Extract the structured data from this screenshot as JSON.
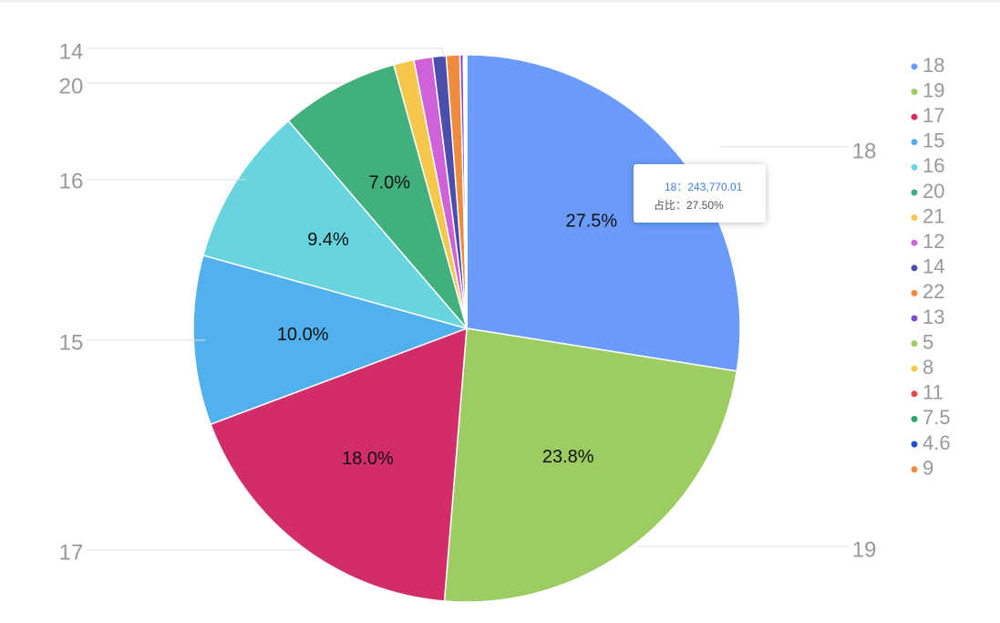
{
  "chart_data": {
    "type": "pie",
    "categories": [
      "18",
      "19",
      "17",
      "15",
      "16",
      "20",
      "21",
      "12",
      "14",
      "22",
      "13",
      "5",
      "8",
      "11",
      "7.5",
      "4.6",
      "9"
    ],
    "values": [
      27.5,
      23.8,
      18.0,
      10.0,
      9.4,
      7.0,
      1.2,
      1.1,
      0.8,
      0.8,
      0.2,
      0.04,
      0.04,
      0.03,
      0.03,
      0.03,
      0.03
    ],
    "value_labels": [
      "27.5%",
      "23.8%",
      "18.0%",
      "10.0%",
      "9.4%",
      "7.0%",
      null,
      null,
      null,
      null,
      null,
      null,
      null,
      null,
      null,
      null,
      null
    ],
    "colors": [
      "#6a9bfd",
      "#9dcc62",
      "#d22d6a",
      "#52b0ee",
      "#68d4de",
      "#41b07c",
      "#f5c84b",
      "#cf62d9",
      "#4a4fae",
      "#f08a3c",
      "#7b4fd6",
      "#9dcc62",
      "#f5c84b",
      "#e84a4a",
      "#2aa86c",
      "#1e4fd6",
      "#f08a3c"
    ],
    "legend": "right",
    "tooltip": {
      "line1": "18：243,770.01",
      "line2": "占比：27.50%"
    }
  }
}
